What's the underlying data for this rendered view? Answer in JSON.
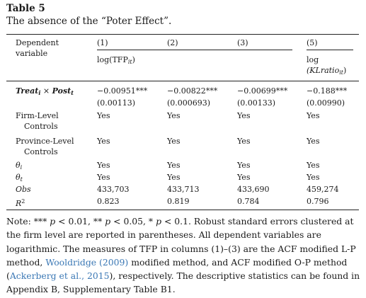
{
  "table": {
    "title": "Table 5",
    "subtitle": "The absence of the “Poter Effect”.",
    "header": {
      "dep_var_line1": "Dependent",
      "dep_var_line2": "variable",
      "col1": "(1)",
      "col2": "(2)",
      "col3": "(3)",
      "col5": "(5)",
      "group1_label": "log(TFP",
      "group1_sub": "it",
      "group1_close": ")",
      "col5_label_line1": "log",
      "col5_label_line2": "(KLratio",
      "col5_label_sub": "it",
      "col5_label_close": ")"
    },
    "rows": {
      "treat": {
        "label_a": "Treat",
        "label_a_sub": "i",
        "label_x": " × ",
        "label_b": "Post",
        "label_b_sub": "t",
        "c1": "−0.00951***",
        "c2": "−0.00822***",
        "c3": "−0.00699***",
        "c5": "−0.188***"
      },
      "se": {
        "c1": "(0.00113)",
        "c2": "(0.000693)",
        "c3": "(0.00133)",
        "c5": "(0.00990)"
      },
      "firm": {
        "label_line1": "Firm-Level",
        "label_line2": "Controls",
        "c1": "Yes",
        "c2": "Yes",
        "c3": "Yes",
        "c5": "Yes"
      },
      "prov": {
        "label_line1": "Province-Level",
        "label_line2": "Controls",
        "c1": "Yes",
        "c2": "Yes",
        "c3": "Yes",
        "c5": "Yes"
      },
      "theta_i": {
        "label": "θ",
        "sub": "i",
        "c1": "Yes",
        "c2": "Yes",
        "c3": "Yes",
        "c5": "Yes"
      },
      "theta_t": {
        "label": "θ",
        "sub": "t",
        "c1": "Yes",
        "c2": "Yes",
        "c3": "Yes",
        "c5": "Yes"
      },
      "obs": {
        "label": "Obs",
        "c1": "433,703",
        "c2": "433,713",
        "c3": "433,690",
        "c5": "459,274"
      },
      "r2": {
        "label": "R",
        "sup": "2",
        "c1": "0.823",
        "c2": "0.819",
        "c3": "0.784",
        "c5": "0.796"
      }
    },
    "note": {
      "t1": "Note: *** ",
      "p1": "p",
      "t2": " < 0.01, ** ",
      "p2": "p",
      "t3": " < 0.05, * ",
      "p3": "p",
      "t4": " < 0.1. Robust standard errors clustered at the firm level are reported in parentheses. All dependent variables are logarithmic. The measures of TFP in columns (1)–(3) are the ACF modified L-P method, ",
      "link1": "Wooldridge (2009)",
      "t5": " modified method, and ACF modified O-P method (",
      "link2": "Ackerberg et al., 2015",
      "t6": "), respectively. The descriptive statistics can be found in Appendix B, Supplementary Table B1."
    }
  }
}
